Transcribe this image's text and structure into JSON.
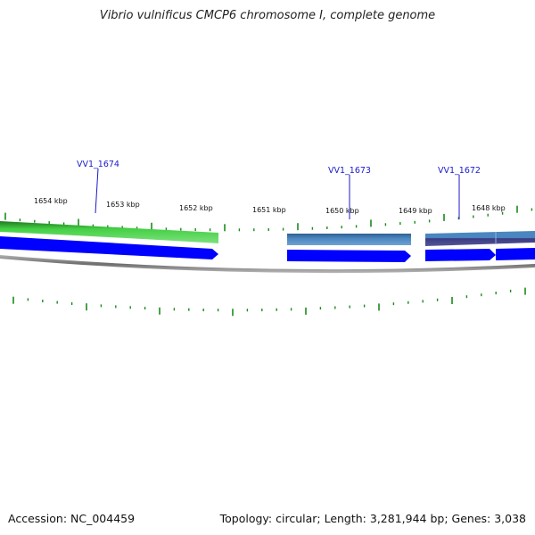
{
  "title": "Vibrio vulnificus CMCP6 chromosome I, complete genome",
  "footer": {
    "accession": "Accession: NC_004459",
    "summary": "Topology: circular; Length: 3,281,944 bp; Genes: 3,038"
  },
  "ruler": {
    "labels": [
      "1654 kbp",
      "1653 kbp",
      "1652 kbp",
      "1651 kbp",
      "1650 kbp",
      "1649 kbp",
      "1648 kbp"
    ]
  },
  "genes": [
    {
      "label": "VV1_1674"
    },
    {
      "label": "VV1_1673"
    },
    {
      "label": "VV1_1672"
    }
  ],
  "colors": {
    "green_gene": "#3cc83c",
    "green_gene_dark": "#2a8a2a",
    "steel_gene": "#4a86c0",
    "steel_gene_dark": "#2f5f8f",
    "purple_gene": "#44448a",
    "cds_blue": "#0000ff",
    "backbone": "#8a8a8a",
    "tick_green": "#1a8a1a",
    "label_blue": "#1a1acc"
  }
}
